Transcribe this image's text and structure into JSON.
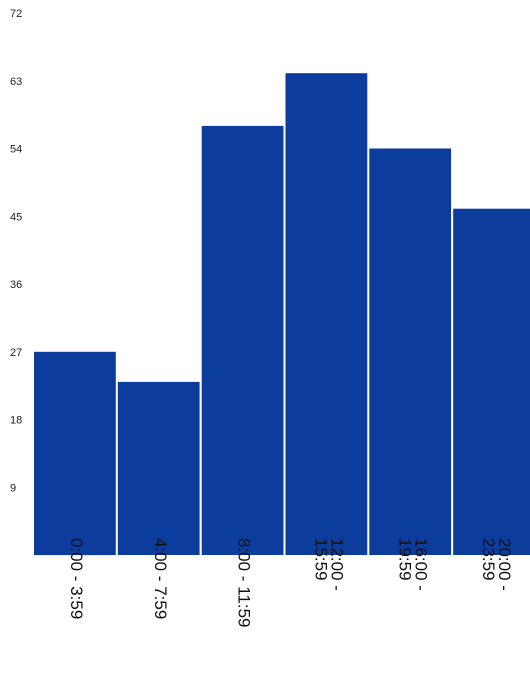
{
  "chart_data": {
    "type": "bar",
    "categories": [
      "0:00 - 3:59",
      "4:00 - 7:59",
      "8:00 - 11:59",
      "12:00 - 15:59",
      "16:00 - 19:59",
      "20:00 - 23:59"
    ],
    "values": [
      27,
      23,
      57,
      64,
      54,
      46
    ],
    "yticks": [
      9,
      18,
      27,
      36,
      45,
      54,
      63,
      72
    ],
    "ylim": [
      0,
      72
    ],
    "title": "",
    "xlabel": "",
    "ylabel": "",
    "grid": false,
    "legend": "none",
    "bar_color": "#0d3d9c"
  }
}
